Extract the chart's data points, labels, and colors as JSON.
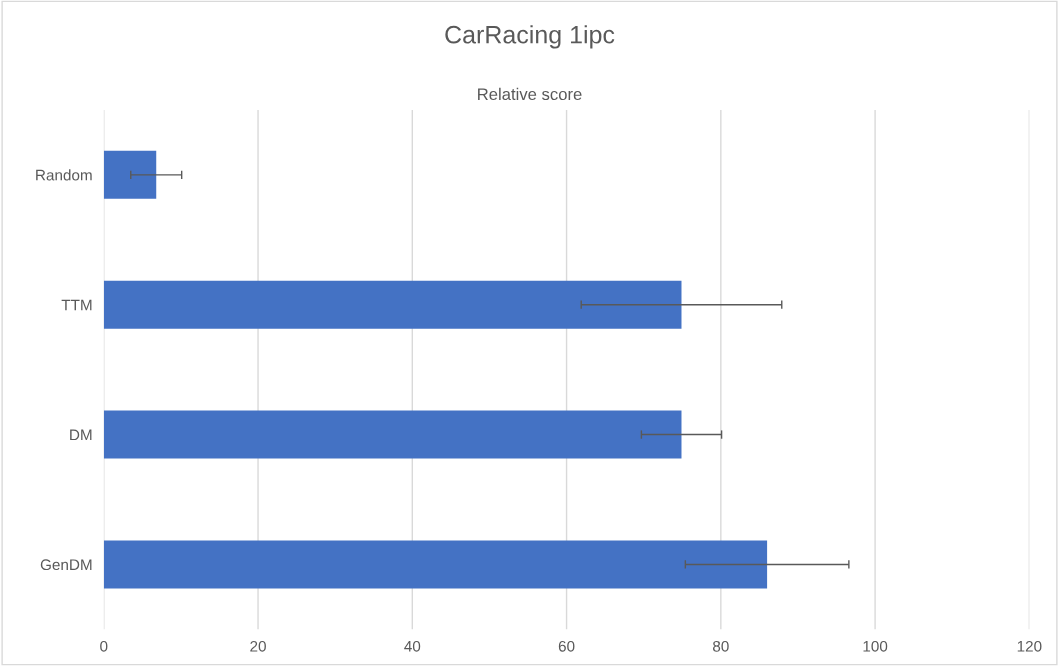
{
  "chart_data": {
    "type": "bar",
    "orientation": "horizontal",
    "title": "CarRacing 1ipc",
    "subtitle": "Relative score",
    "categories": [
      "Random",
      "TTM",
      "DM",
      "GenDM"
    ],
    "values": [
      6.8,
      74.9,
      74.9,
      86.0
    ],
    "errors": [
      3.3,
      13.0,
      5.2,
      10.6
    ],
    "color": "#4472c4",
    "xlim": [
      0,
      120
    ],
    "xticks": [
      0,
      20,
      40,
      60,
      80,
      100,
      120
    ],
    "grid": "x"
  }
}
